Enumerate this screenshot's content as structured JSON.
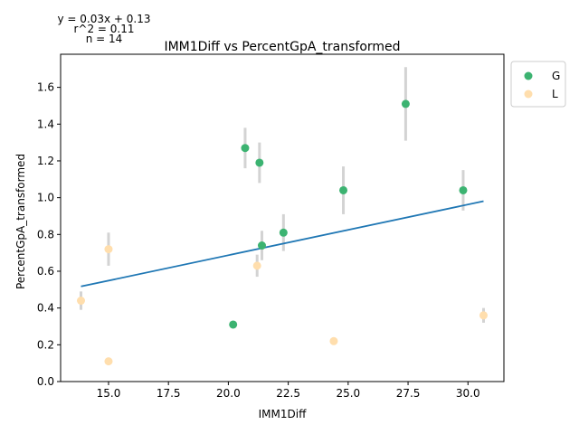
{
  "chart_data": {
    "type": "scatter",
    "title": "IMM1Diff vs PercentGpA_transformed",
    "xlabel": "IMM1Diff",
    "ylabel": "PercentGpA_transformed",
    "xlim": [
      13.0,
      31.5
    ],
    "ylim": [
      0.0,
      1.78
    ],
    "xticks": [
      15.0,
      17.5,
      20.0,
      22.5,
      25.0,
      27.5,
      30.0
    ],
    "xtick_labels": [
      "15.0",
      "17.5",
      "20.0",
      "22.5",
      "25.0",
      "27.5",
      "30.0"
    ],
    "yticks": [
      0.0,
      0.2,
      0.4,
      0.6,
      0.8,
      1.0,
      1.2,
      1.4,
      1.6
    ],
    "ytick_labels": [
      "0.0",
      "0.2",
      "0.4",
      "0.6",
      "0.8",
      "1.0",
      "1.2",
      "1.4",
      "1.6"
    ],
    "grid": false,
    "legend_position": "outside-top-right",
    "annotations": [
      "y = 0.03x + 0.13",
      "r^2 = 0.11",
      "n = 14"
    ],
    "fit": {
      "slope": 0.0276,
      "intercept": 0.135,
      "x_range": [
        13.85,
        30.65
      ],
      "color": "#1f77b4"
    },
    "error_bar_color": "#d3d3d3",
    "series": [
      {
        "name": "G",
        "color": "#3cb371",
        "points": [
          {
            "x": 20.2,
            "y": 0.31,
            "err": 0.02
          },
          {
            "x": 20.7,
            "y": 1.27,
            "err": 0.11
          },
          {
            "x": 21.3,
            "y": 1.19,
            "err": 0.11
          },
          {
            "x": 21.4,
            "y": 0.74,
            "err": 0.08
          },
          {
            "x": 22.3,
            "y": 0.81,
            "err": 0.1
          },
          {
            "x": 24.8,
            "y": 1.04,
            "err": 0.13
          },
          {
            "x": 27.4,
            "y": 1.51,
            "err": 0.2
          },
          {
            "x": 29.8,
            "y": 1.04,
            "err": 0.11
          }
        ]
      },
      {
        "name": "L",
        "color": "#ffdead",
        "points": [
          {
            "x": 13.85,
            "y": 0.44,
            "err": 0.05
          },
          {
            "x": 15.0,
            "y": 0.72,
            "err": 0.09
          },
          {
            "x": 15.0,
            "y": 0.11,
            "err": 0.01
          },
          {
            "x": 21.2,
            "y": 0.63,
            "err": 0.06
          },
          {
            "x": 24.4,
            "y": 0.22,
            "err": 0.02
          },
          {
            "x": 30.65,
            "y": 0.36,
            "err": 0.04
          }
        ]
      }
    ]
  }
}
